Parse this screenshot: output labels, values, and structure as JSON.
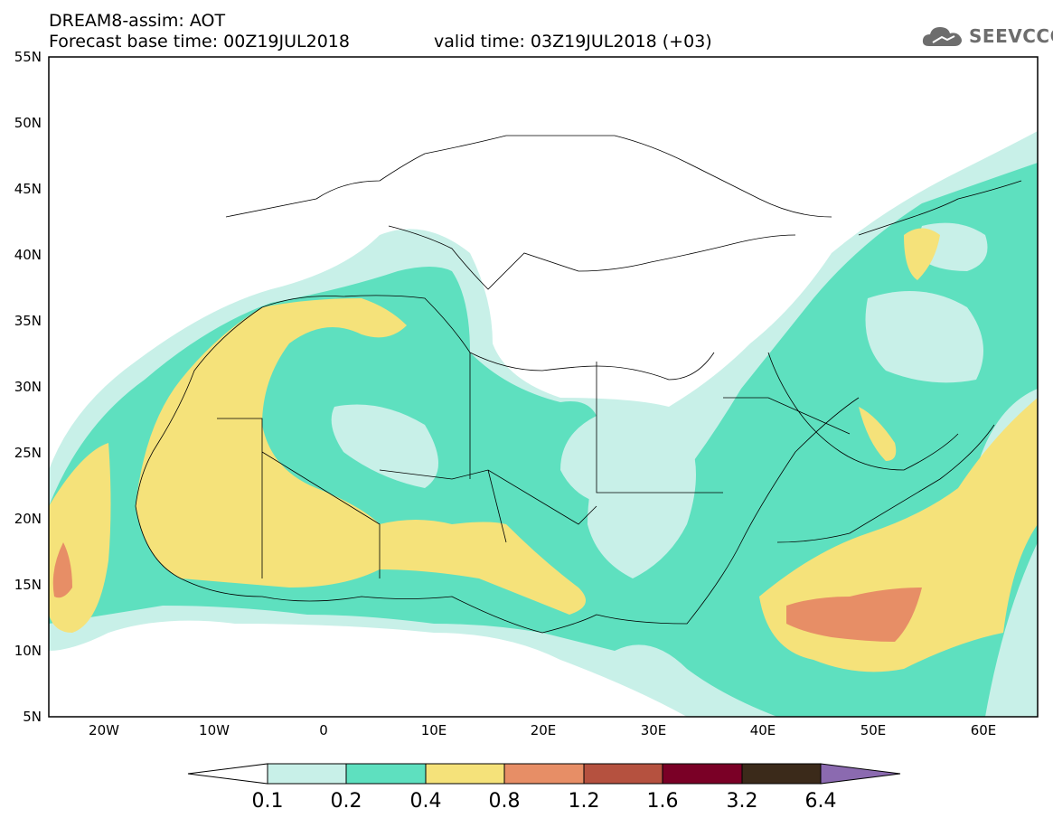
{
  "header": {
    "model_title": "DREAM8-assim: AOT",
    "forecast_base": "Forecast base time: 00Z19JUL2018",
    "valid_time": "valid time: 03Z19JUL2018 (+03)"
  },
  "logo": {
    "text": "SEEVCCC",
    "icon": "cloud-icon"
  },
  "map": {
    "lon_range": [
      -25,
      65
    ],
    "lat_range": [
      5,
      55
    ],
    "lat_labels": [
      "5N",
      "10N",
      "15N",
      "20N",
      "25N",
      "30N",
      "35N",
      "40N",
      "45N",
      "50N",
      "55N"
    ],
    "lon_labels": [
      "20W",
      "10W",
      "0",
      "10E",
      "20E",
      "30E",
      "40E",
      "50E",
      "60E"
    ]
  },
  "colorbar": {
    "labels": [
      "0.1",
      "0.2",
      "0.4",
      "0.8",
      "1.2",
      "1.6",
      "3.2",
      "6.4"
    ],
    "colors": [
      "#c8f0e8",
      "#5ee0bf",
      "#f5e27a",
      "#e78e66",
      "#b5513f",
      "#7a0026",
      "#3b2a1a",
      "#8b6ab0"
    ]
  }
}
